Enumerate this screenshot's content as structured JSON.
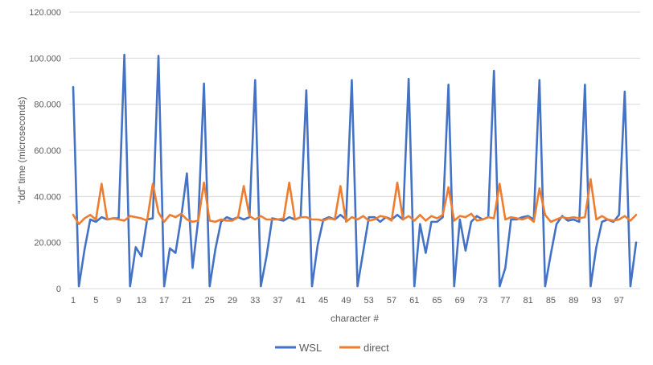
{
  "chart_data": {
    "type": "line",
    "title": "",
    "xlabel": "character #",
    "ylabel": "\"dd\" time (microseconds)",
    "ylim": [
      0,
      120000
    ],
    "ytick_values": [
      0,
      20000,
      40000,
      60000,
      80000,
      100000,
      120000
    ],
    "ytick_labels": [
      "0",
      "20.000",
      "40.000",
      "60.000",
      "80.000",
      "100.000",
      "120.000"
    ],
    "x": [
      1,
      2,
      3,
      4,
      5,
      6,
      7,
      8,
      9,
      10,
      11,
      12,
      13,
      14,
      15,
      16,
      17,
      18,
      19,
      20,
      21,
      22,
      23,
      24,
      25,
      26,
      27,
      28,
      29,
      30,
      31,
      32,
      33,
      34,
      35,
      36,
      37,
      38,
      39,
      40,
      41,
      42,
      43,
      44,
      45,
      46,
      47,
      48,
      49,
      50,
      51,
      52,
      53,
      54,
      55,
      56,
      57,
      58,
      59,
      60,
      61,
      62,
      63,
      64,
      65,
      66,
      67,
      68,
      69,
      70,
      71,
      72,
      73,
      74,
      75,
      76,
      77,
      78,
      79,
      80,
      81,
      82,
      83,
      84,
      85,
      86,
      87,
      88,
      89,
      90,
      91,
      92,
      93,
      94,
      95,
      96,
      97,
      98,
      99,
      100
    ],
    "xtick_values": [
      1,
      5,
      9,
      13,
      17,
      21,
      25,
      29,
      33,
      37,
      41,
      45,
      49,
      53,
      57,
      61,
      65,
      69,
      73,
      77,
      81,
      85,
      89,
      93,
      97
    ],
    "xtick_labels": [
      "1",
      "5",
      "9",
      "13",
      "17",
      "21",
      "25",
      "29",
      "33",
      "37",
      "41",
      "45",
      "49",
      "53",
      "57",
      "61",
      "65",
      "69",
      "73",
      "77",
      "81",
      "85",
      "89",
      "93",
      "97"
    ],
    "grid": true,
    "legend_position": "bottom",
    "series": [
      {
        "name": "WSL",
        "color": "#4472C4",
        "values": [
          87500,
          1000,
          17000,
          30000,
          29000,
          31000,
          30000,
          30500,
          30500,
          101500,
          1000,
          18000,
          14000,
          30000,
          30500,
          101000,
          1000,
          17500,
          15500,
          31000,
          50000,
          9000,
          30000,
          89000,
          1000,
          17000,
          29000,
          31000,
          30000,
          31000,
          30000,
          31000,
          90500,
          1000,
          14000,
          30500,
          30000,
          29500,
          31000,
          30000,
          31000,
          86000,
          1000,
          19000,
          30000,
          31000,
          30000,
          32000,
          30000,
          90500,
          1000,
          16000,
          31000,
          31000,
          29000,
          31000,
          30000,
          32000,
          30000,
          91000,
          1000,
          28000,
          15500,
          29000,
          29000,
          31000,
          88500,
          1000,
          30000,
          16500,
          29000,
          31500,
          30000,
          31000,
          94500,
          1000,
          9000,
          30000,
          30000,
          31000,
          31500,
          30000,
          90500,
          1000,
          15000,
          28000,
          31500,
          29500,
          30000,
          29000,
          88500,
          1000,
          18000,
          29000,
          30000,
          29000,
          32000,
          85500,
          1000,
          20000
        ]
      },
      {
        "name": "direct",
        "color": "#ED7D31",
        "values": [
          32000,
          28000,
          30500,
          32000,
          30000,
          45500,
          30000,
          30500,
          30000,
          29500,
          31500,
          31000,
          30500,
          29500,
          45500,
          33000,
          29000,
          32000,
          31000,
          32500,
          30000,
          29000,
          29500,
          46000,
          29500,
          29000,
          30000,
          29500,
          29500,
          31000,
          44500,
          31500,
          30000,
          31500,
          30000,
          30000,
          30000,
          30500,
          46000,
          30000,
          31000,
          31000,
          30000,
          30000,
          29500,
          30500,
          30000,
          44500,
          29000,
          31000,
          30000,
          31500,
          29500,
          30000,
          31500,
          31000,
          29500,
          46000,
          30000,
          31500,
          29500,
          32000,
          29500,
          31500,
          30500,
          32000,
          44000,
          29500,
          31500,
          31000,
          32500,
          29500,
          30000,
          31000,
          30500,
          45500,
          30000,
          31000,
          30500,
          30000,
          31000,
          29000,
          43500,
          32000,
          29000,
          30000,
          31000,
          30500,
          31000,
          30500,
          31000,
          47500,
          30000,
          31500,
          30000,
          29500,
          30000,
          31500,
          29500,
          32000
        ]
      }
    ]
  }
}
